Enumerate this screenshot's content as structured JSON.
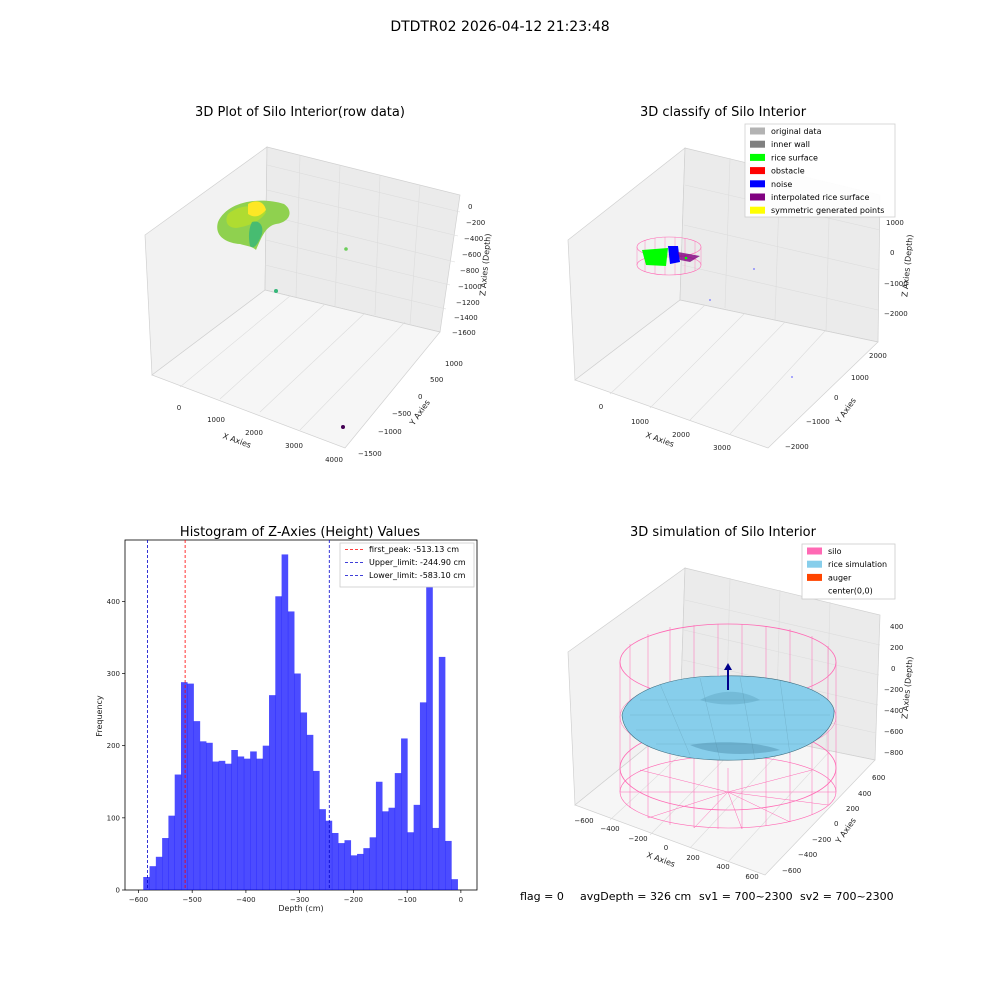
{
  "figure": {
    "suptitle": "DTDTR02 2026-04-12 21:23:48",
    "footer": {
      "flag": "flag = 0",
      "avg": "avgDepth = 326 cm",
      "sv1": "sv1 = 700~2300",
      "sv2": "sv2 = 700~2300"
    }
  },
  "chart_data": [
    {
      "type": "scatter",
      "projection": "3d",
      "title": "3D Plot of Silo Interior(row data)",
      "xlabel": "X Axies",
      "ylabel": "Y Axies",
      "zlabel": "Z Axies (Depth)",
      "xticks": [
        "0",
        "1000",
        "2000",
        "3000",
        "4000"
      ],
      "yticks": [
        "1000",
        "500",
        "0",
        "−500",
        "−1000",
        "−1500"
      ],
      "zticks": [
        "0",
        "−200",
        "−400",
        "−600",
        "−800",
        "−1000",
        "−1200",
        "−1400",
        "−1600"
      ],
      "grid": true,
      "colors": {
        "cloud": "#8fd14f",
        "cloud_alt": "#35b779",
        "highlight": "#fde725",
        "outlier_purple": "#440154"
      }
    },
    {
      "type": "scatter",
      "projection": "3d",
      "title": "3D classify of Silo Interior",
      "xlabel": "X Axies",
      "ylabel": "Y Axies",
      "zlabel": "Z Axies (Depth)",
      "xticks": [
        "0",
        "1000",
        "2000",
        "3000"
      ],
      "yticks": [
        "2000",
        "1000",
        "0",
        "−1000",
        "−2000"
      ],
      "zticks": [
        "1000",
        "0",
        "−1000",
        "−2000"
      ],
      "grid": true,
      "legend_position": "top-right",
      "legend": [
        {
          "label": "original data",
          "color": "#b3b3b3"
        },
        {
          "label": "inner wall",
          "color": "#808080"
        },
        {
          "label": "rice surface",
          "color": "#00ff00"
        },
        {
          "label": "obstacle",
          "color": "#ff0000"
        },
        {
          "label": "noise",
          "color": "#0000ff"
        },
        {
          "label": "interpolated rice surface",
          "color": "#800080"
        },
        {
          "label": "symmetric generated points",
          "color": "#ffff00"
        }
      ]
    },
    {
      "type": "bar",
      "title": "Histogram of Z-Axies (Height) Values",
      "xlabel": "Depth (cm)",
      "ylabel": "Frequency",
      "xlim": [
        -625,
        30
      ],
      "ylim": [
        0,
        485
      ],
      "xticks": [
        -600,
        -500,
        -400,
        -300,
        -200,
        -100,
        0
      ],
      "xtick_labels": [
        "−600",
        "−500",
        "−400",
        "−300",
        "−200",
        "−100",
        "0"
      ],
      "yticks": [
        0,
        100,
        200,
        300,
        400
      ],
      "bin_width": 11.7,
      "bins_start": -591,
      "counts": [
        18,
        33,
        46,
        72,
        103,
        160,
        288,
        286,
        234,
        206,
        204,
        178,
        179,
        175,
        194,
        185,
        182,
        192,
        182,
        200,
        270,
        407,
        465,
        386,
        300,
        246,
        215,
        165,
        112,
        96,
        79,
        65,
        69,
        48,
        50,
        58,
        73,
        150,
        109,
        114,
        162,
        210,
        80,
        118,
        260,
        430,
        86,
        323,
        68,
        15
      ],
      "bar_color": "#0000ff",
      "vlines": [
        {
          "x": -513.13,
          "color": "#ff0000",
          "label": "first_peak: -513.13 cm"
        },
        {
          "x": -244.9,
          "color": "#0000cc",
          "label": "Upper_limit: -244.90 cm"
        },
        {
          "x": -583.1,
          "color": "#0000cc",
          "label": "Lower_limit: -583.10 cm"
        }
      ],
      "legend_position": "top-right"
    },
    {
      "type": "scatter",
      "projection": "3d",
      "title": "3D simulation of Silo Interior",
      "xlabel": "X Axies",
      "ylabel": "Y Axies",
      "zlabel": "Z Axies (Depth)",
      "xticks": [
        "−600",
        "−400",
        "−200",
        "0",
        "200",
        "400",
        "600"
      ],
      "yticks": [
        "600",
        "400",
        "200",
        "0",
        "−200",
        "−400",
        "−600"
      ],
      "zticks": [
        "400",
        "200",
        "0",
        "−200",
        "−400",
        "−600",
        "−800"
      ],
      "grid": true,
      "legend_position": "top-right",
      "legend": [
        {
          "label": "silo",
          "color": "#ff69b4"
        },
        {
          "label": "rice simulation",
          "color": "#87ceeb"
        },
        {
          "label": "auger",
          "color": "#ff4500"
        },
        {
          "label": "center(0,0)",
          "color": "#ffffff"
        }
      ]
    }
  ]
}
